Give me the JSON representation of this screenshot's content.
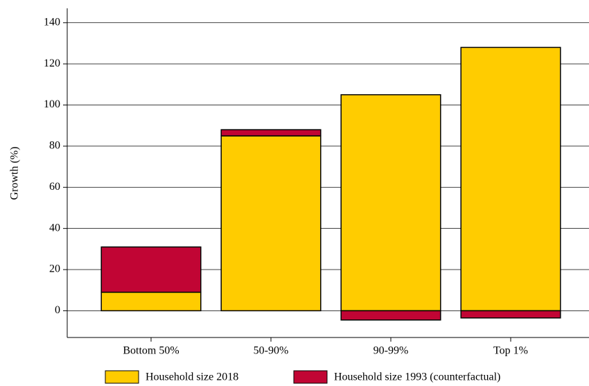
{
  "chart_data": {
    "type": "stacked_bar",
    "y_label": "Growth (%)",
    "categories": [
      "Bottom 50%",
      "50-90%",
      "90-99%",
      "Top 1%"
    ],
    "series": [
      {
        "name": "Household size 2018",
        "color": "#ffcc00",
        "values": [
          9,
          85,
          105,
          128
        ]
      },
      {
        "name": "Household size 1993 (counterfactual)",
        "color": "#c10534",
        "values": [
          22,
          3,
          -4.5,
          -3.5
        ]
      }
    ],
    "ylim": [
      -13,
      147
    ],
    "yticks": [
      0,
      20,
      40,
      60,
      80,
      100,
      120,
      140
    ],
    "grid": true
  }
}
